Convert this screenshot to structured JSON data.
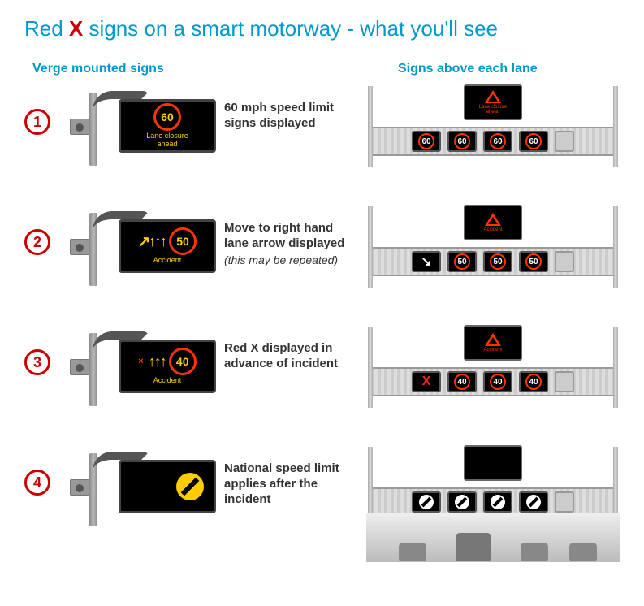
{
  "title_prefix": "Red ",
  "title_x": "X",
  "title_suffix": " signs on a smart motorway - what you'll see",
  "col_a_header": "Verge mounted signs",
  "col_b_header": "Signs above each lane",
  "rows": [
    {
      "num": "1",
      "desc_main": "60 mph speed limit signs displayed",
      "desc_sub": "",
      "verge": {
        "speed": "60",
        "arrows": "",
        "tiny_x": "",
        "msg": "Lane closure\nahead",
        "nsl": false
      },
      "top_caption": "Lane closure\nahead",
      "lanes": [
        {
          "type": "speed",
          "val": "60"
        },
        {
          "type": "speed",
          "val": "60"
        },
        {
          "type": "speed",
          "val": "60"
        },
        {
          "type": "speed",
          "val": "60"
        },
        {
          "type": "cam"
        }
      ]
    },
    {
      "num": "2",
      "desc_main": "Move to right hand lane arrow displayed",
      "desc_sub": "(this may be repeated)",
      "verge": {
        "speed": "50",
        "arrows": "↗↑↑↑",
        "tiny_x": "",
        "msg": "Accident",
        "nsl": false
      },
      "top_caption": "Accident",
      "lanes": [
        {
          "type": "arrow",
          "val": "↘"
        },
        {
          "type": "speed",
          "val": "50"
        },
        {
          "type": "speed",
          "val": "50"
        },
        {
          "type": "speed",
          "val": "50"
        },
        {
          "type": "cam"
        }
      ]
    },
    {
      "num": "3",
      "desc_main": "Red X displayed in advance of incident",
      "desc_sub": "",
      "verge": {
        "speed": "40",
        "arrows": "↑↑↑",
        "tiny_x": "×",
        "msg": "Accident",
        "nsl": false
      },
      "top_caption": "Accident",
      "lanes": [
        {
          "type": "x",
          "val": "X"
        },
        {
          "type": "speed",
          "val": "40"
        },
        {
          "type": "speed",
          "val": "40"
        },
        {
          "type": "speed",
          "val": "40"
        },
        {
          "type": "cam"
        }
      ]
    },
    {
      "num": "4",
      "desc_main": "National speed limit applies after the incident",
      "desc_sub": "",
      "verge": {
        "speed": "",
        "arrows": "",
        "tiny_x": "",
        "msg": "",
        "nsl": true
      },
      "top_caption": "",
      "lanes": [
        {
          "type": "nsl"
        },
        {
          "type": "nsl"
        },
        {
          "type": "nsl"
        },
        {
          "type": "nsl"
        },
        {
          "type": "cam"
        }
      ],
      "show_road": true
    }
  ]
}
